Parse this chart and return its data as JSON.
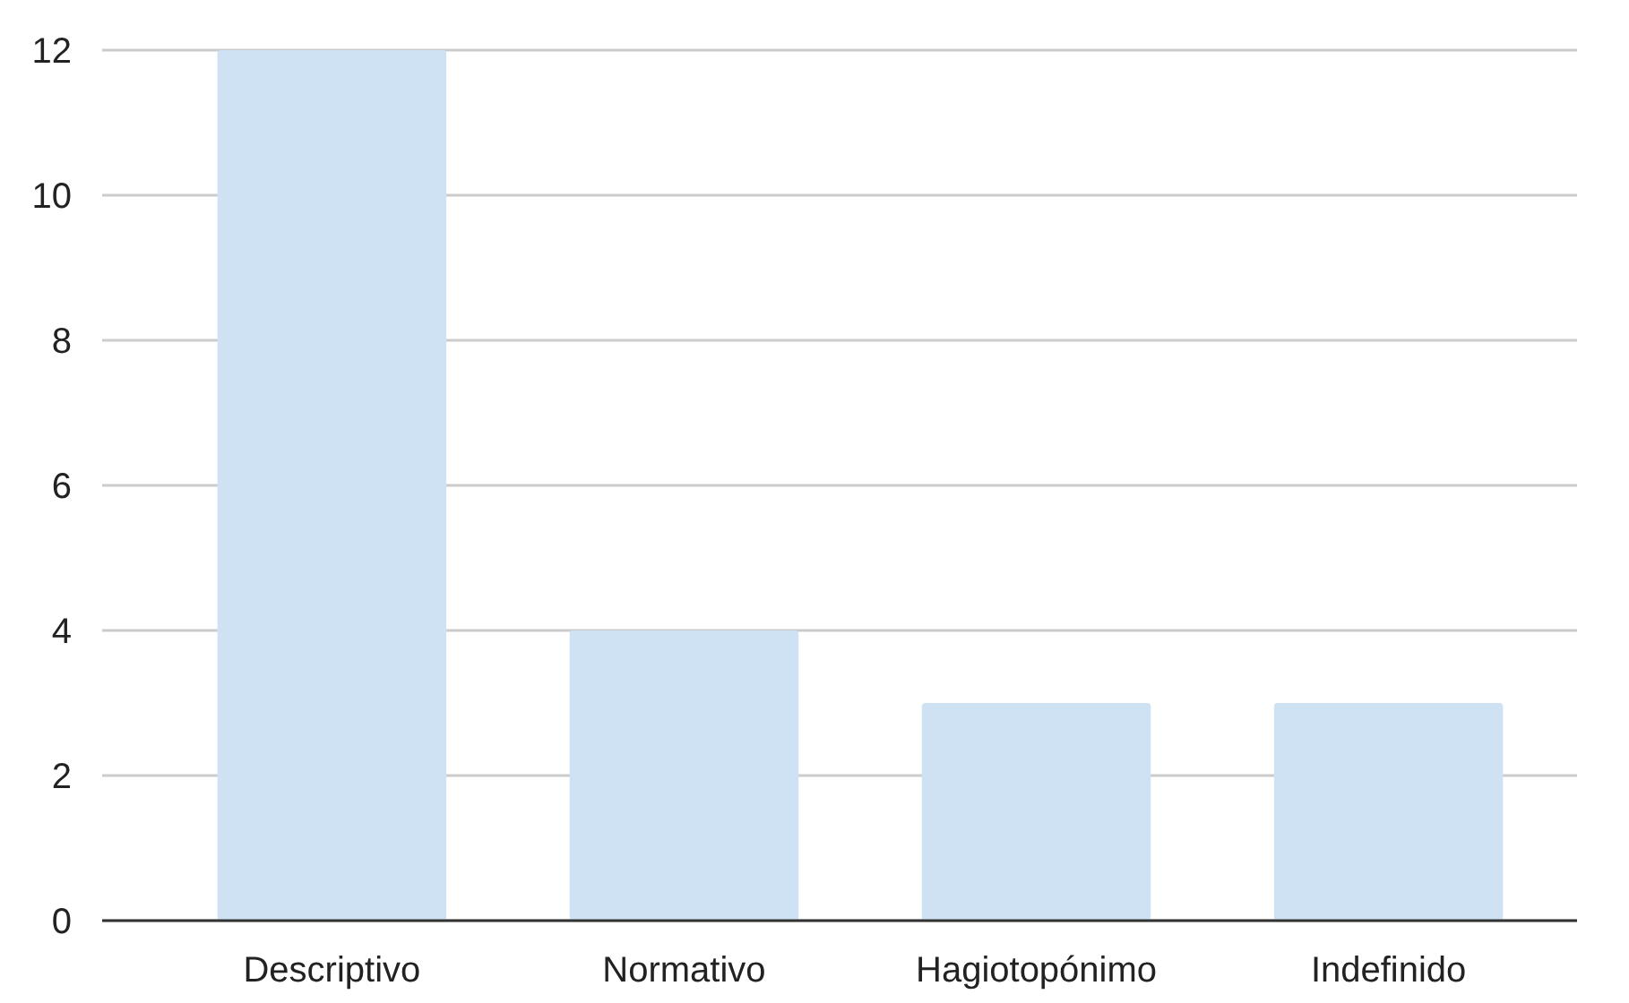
{
  "chart_data": {
    "type": "bar",
    "categories": [
      "Descriptivo",
      "Normativo",
      "Hagiotopónimo",
      "Indefinido"
    ],
    "values": [
      12,
      4,
      3,
      3
    ],
    "color": "#cfe2f3",
    "ylim": [
      0,
      12
    ],
    "yticks": [
      0,
      2,
      4,
      6,
      8,
      10,
      12
    ],
    "grid": "y"
  }
}
